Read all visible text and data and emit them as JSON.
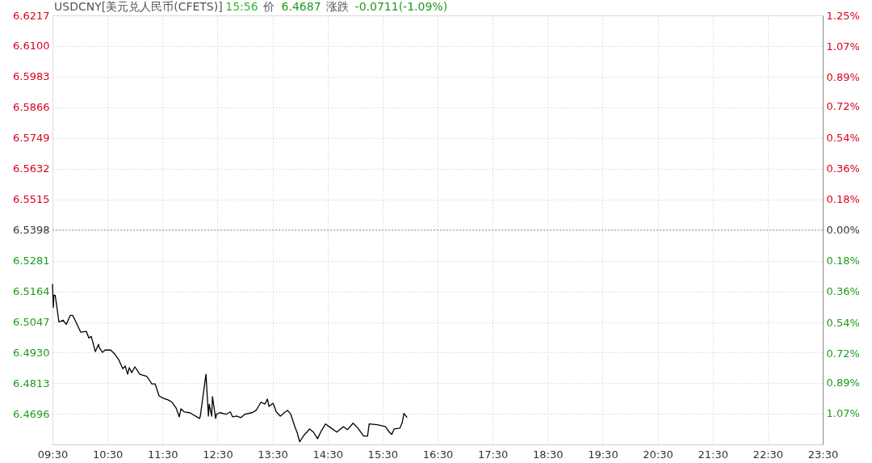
{
  "chart_data": {
    "type": "line",
    "title": "USDCNY[美元兑人民币(CFETS)]",
    "annotations": [
      "15:56",
      "价",
      "6.4687",
      "涨跌",
      "-0.0711(-1.09%)"
    ],
    "x": [
      9.5,
      9.515,
      9.525,
      9.548,
      9.573,
      9.617,
      9.691,
      9.75,
      9.823,
      9.867,
      9.911,
      10.014,
      10.117,
      10.161,
      10.205,
      10.279,
      10.337,
      10.352,
      10.41,
      10.454,
      10.557,
      10.631,
      10.704,
      10.778,
      10.822,
      10.866,
      10.896,
      10.939,
      10.998,
      11.086,
      11.218,
      11.306,
      11.365,
      11.438,
      11.512,
      11.6,
      11.673,
      11.747,
      11.805,
      11.835,
      11.894,
      11.996,
      12.173,
      12.187,
      12.29,
      12.334,
      12.349,
      12.393,
      12.408,
      12.466,
      12.481,
      12.54,
      12.657,
      12.731,
      12.775,
      12.848,
      12.921,
      12.995,
      13.127,
      13.2,
      13.244,
      13.289,
      13.362,
      13.406,
      13.435,
      13.509,
      13.568,
      13.641,
      13.714,
      13.773,
      13.832,
      13.905,
      13.949,
      13.993,
      14.081,
      14.126,
      14.17,
      14.243,
      14.317,
      14.39,
      14.463,
      14.566,
      14.669,
      14.786,
      14.86,
      14.963,
      15.051,
      15.154,
      15.227,
      15.256,
      15.403,
      15.55,
      15.623,
      15.667,
      15.711,
      15.814,
      15.858,
      15.888,
      15.946
    ],
    "series": [
      {
        "color": "#000000",
        "values": [
          6.5192,
          6.5103,
          6.5149,
          6.5149,
          6.5115,
          6.5047,
          6.5054,
          6.5038,
          6.5072,
          6.5072,
          6.5054,
          6.5008,
          6.5011,
          6.4986,
          6.4992,
          6.4934,
          6.4962,
          6.4949,
          6.4931,
          6.494,
          6.494,
          6.4925,
          6.4903,
          6.4869,
          6.4879,
          6.4848,
          6.4873,
          6.4854,
          6.4876,
          6.4848,
          6.4839,
          6.4811,
          6.4811,
          6.4765,
          6.4756,
          6.475,
          6.4741,
          6.4719,
          6.4685,
          6.4716,
          6.4704,
          6.4701,
          6.4679,
          6.4688,
          6.4848,
          6.4688,
          6.4734,
          6.4688,
          6.4762,
          6.4679,
          6.4695,
          6.4701,
          6.4695,
          6.4704,
          6.4685,
          6.4688,
          6.4682,
          6.4695,
          6.4701,
          6.471,
          6.4725,
          6.4741,
          6.4734,
          6.4753,
          6.4725,
          6.4737,
          6.4704,
          6.4688,
          6.4701,
          6.471,
          6.4695,
          6.4648,
          6.4624,
          6.459,
          6.4618,
          6.4627,
          6.4639,
          6.4627,
          6.4602,
          6.4633,
          6.4658,
          6.4642,
          6.4627,
          6.4648,
          6.4636,
          6.4661,
          6.4642,
          6.4612,
          6.4612,
          6.4658,
          6.4655,
          6.4648,
          6.4627,
          6.4618,
          6.4639,
          6.4642,
          6.4664,
          6.4698,
          6.4682
        ]
      }
    ],
    "xlim": [
      9.5,
      23.5
    ],
    "xticks": [
      {
        "value": 9.5,
        "label": "09:30"
      },
      {
        "value": 10.5,
        "label": "10:30"
      },
      {
        "value": 11.5,
        "label": "11:30"
      },
      {
        "value": 12.5,
        "label": "12:30"
      },
      {
        "value": 13.5,
        "label": "13:30"
      },
      {
        "value": 14.5,
        "label": "14:30"
      },
      {
        "value": 15.5,
        "label": "15:30"
      },
      {
        "value": 16.5,
        "label": "16:30"
      },
      {
        "value": 17.5,
        "label": "17:30"
      },
      {
        "value": 18.5,
        "label": "18:30"
      },
      {
        "value": 19.5,
        "label": "19:30"
      },
      {
        "value": 20.5,
        "label": "20:30"
      },
      {
        "value": 21.5,
        "label": "21:30"
      },
      {
        "value": 22.5,
        "label": "22:30"
      },
      {
        "value": 23.5,
        "label": "23:30"
      }
    ],
    "ylim": [
      6.458,
      6.6217
    ],
    "yticks": [
      6.6217,
      {
        "value": 6.61,
        "label": "6.6100"
      },
      6.5983,
      6.5866,
      6.5749,
      6.5632,
      6.5515,
      6.5398,
      6.5281,
      6.5164,
      6.5047,
      {
        "value": 6.493,
        "label": "6.4930"
      },
      6.4813,
      6.4696
    ],
    "y2lim": [
      -1.251,
      1.252
    ],
    "y2ticks": [
      {
        "value": 1.25,
        "label": "1.25%"
      },
      {
        "value": 1.07,
        "label": "1.07%"
      },
      {
        "value": 0.89,
        "label": "0.89%"
      },
      {
        "value": 0.72,
        "label": "0.72%"
      },
      {
        "value": 0.54,
        "label": "0.54%"
      },
      {
        "value": 0.36,
        "label": "0.36%"
      },
      {
        "value": 0.18,
        "label": "0.18%"
      },
      {
        "value": 0,
        "label": "0.00%"
      },
      {
        "value": -0.18,
        "label": "0.18%"
      },
      {
        "value": -0.36,
        "label": "0.36%"
      },
      {
        "value": -0.54,
        "label": "0.54%"
      },
      {
        "value": -0.72,
        "label": "0.72%"
      },
      {
        "value": -0.89,
        "label": "0.89%"
      },
      {
        "value": -1.07,
        "label": "1.07%"
      }
    ],
    "ref_lines": [
      {
        "axis": "y",
        "value": 6.5398,
        "color": "#999999",
        "line_style": "dotted"
      }
    ],
    "grid": true,
    "marker": "none",
    "line_style": "solid"
  }
}
